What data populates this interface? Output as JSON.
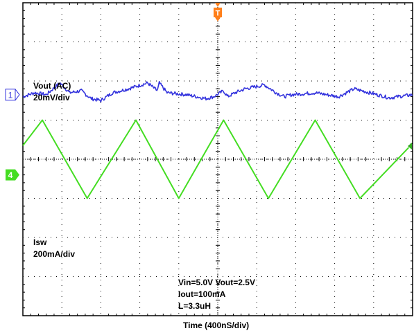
{
  "chart_data": {
    "type": "line",
    "xlabel": "Time  (400nS/div)",
    "grid": true,
    "divisions": {
      "x": 10,
      "y": 8
    },
    "trigger_marker": "T",
    "channels": [
      {
        "name": "Vout (AC)",
        "scale": "20mV/div",
        "channel_number": "1",
        "color": "#3333dd",
        "reference_div": 2.35,
        "x": [
          0,
          0.3,
          0.6,
          0.95,
          1.2,
          1.5,
          1.75,
          2.0,
          2.3,
          2.7,
          3.2,
          3.45,
          3.5,
          3.7,
          4.2,
          4.7,
          4.9,
          5.15,
          5.25,
          5.45,
          5.7,
          6.2,
          6.5,
          6.7,
          6.9,
          7.5,
          8.1,
          8.5,
          8.9,
          9.4,
          10.0
        ],
        "y": [
          -0.05,
          0.05,
          0.0,
          0.3,
          0.05,
          0.1,
          -0.1,
          -0.15,
          0.05,
          0.15,
          0.3,
          0.1,
          0.3,
          0.05,
          0.0,
          -0.1,
          -0.05,
          0.1,
          -0.05,
          0.05,
          0.15,
          0.25,
          0.05,
          -0.05,
          0.0,
          0.05,
          -0.05,
          0.15,
          0.05,
          -0.08,
          0.0
        ]
      },
      {
        "name": "Isw",
        "scale": "200mA/div",
        "channel_number": "4",
        "color": "#44dd22",
        "reference_div": 4.4,
        "x": [
          0.0,
          0.5,
          1.65,
          2.9,
          4.0,
          5.15,
          6.3,
          7.5,
          8.65,
          9.9
        ],
        "y": [
          0.75,
          1.4,
          -0.6,
          1.4,
          -0.6,
          1.4,
          -0.6,
          1.4,
          -0.6,
          0.7
        ]
      }
    ]
  },
  "annotations": {
    "vin_vout": "Vin=5.0V  Vout=2.5V",
    "iout": "Iout=100mA",
    "inductor": "L=3.3uH"
  }
}
